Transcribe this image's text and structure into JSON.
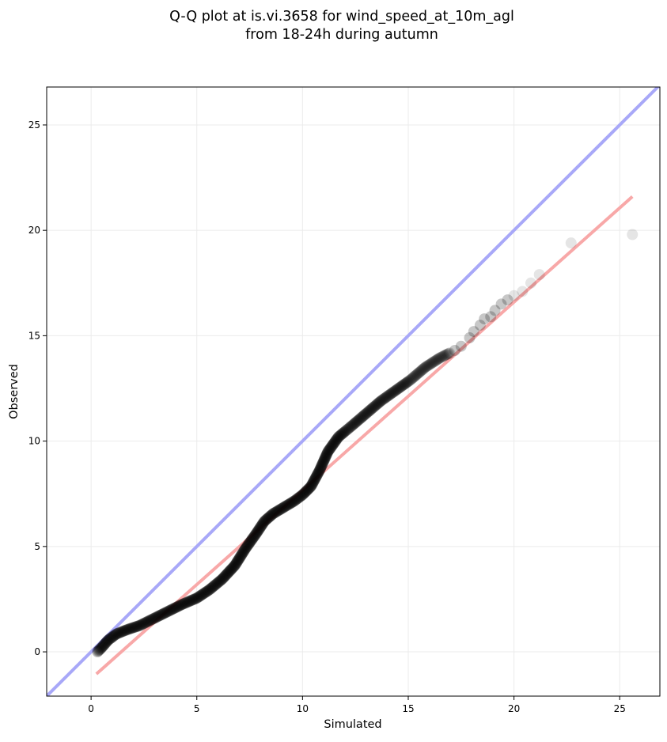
{
  "chart_data": {
    "type": "scatter",
    "title_line1": "Q-Q plot at is.vi.3658 for wind_speed_at_10m_agl",
    "title_line2": "from 18-24h during autumn",
    "xlabel": "Simulated",
    "ylabel": "Observed",
    "xlim": [
      -2.1,
      26.9
    ],
    "ylim": [
      -2.1,
      26.8
    ],
    "xticks": [
      0,
      5,
      10,
      15,
      20,
      25
    ],
    "yticks": [
      0,
      5,
      10,
      15,
      20,
      25
    ],
    "grid": true,
    "identity_line_color": "#a8a8f8",
    "fit_line_color": "#f8a8a8",
    "point_color": "#000000",
    "fit_line": {
      "x": [
        0.25,
        25.6
      ],
      "y": [
        -1.05,
        21.6
      ]
    },
    "curve": {
      "x": [
        0.3,
        0.5,
        0.8,
        1.2,
        1.7,
        2.3,
        3.0,
        3.7,
        4.3,
        5.0,
        5.6,
        6.2,
        6.8,
        7.3,
        7.8,
        8.2,
        8.6,
        9.1,
        9.6,
        10.0,
        10.4,
        10.8,
        11.2,
        11.7,
        12.3,
        13.0,
        13.7,
        14.4,
        15.1,
        15.8,
        16.5,
        17.0
      ],
      "y": [
        0.0,
        0.2,
        0.55,
        0.85,
        1.05,
        1.25,
        1.6,
        1.95,
        2.25,
        2.55,
        2.95,
        3.45,
        4.1,
        4.9,
        5.6,
        6.2,
        6.55,
        6.85,
        7.15,
        7.45,
        7.85,
        8.6,
        9.5,
        10.2,
        10.7,
        11.3,
        11.9,
        12.4,
        12.9,
        13.5,
        13.95,
        14.2
      ]
    },
    "tail_points": {
      "x": [
        17.2,
        17.5,
        17.9,
        18.1,
        18.4,
        18.6,
        18.9,
        19.1,
        19.4,
        19.7,
        20.0,
        20.4,
        20.8,
        21.2,
        22.7,
        25.6
      ],
      "y": [
        14.3,
        14.5,
        14.9,
        15.2,
        15.5,
        15.8,
        15.9,
        16.2,
        16.5,
        16.7,
        16.9,
        17.1,
        17.5,
        17.9,
        19.4,
        19.8
      ]
    }
  }
}
